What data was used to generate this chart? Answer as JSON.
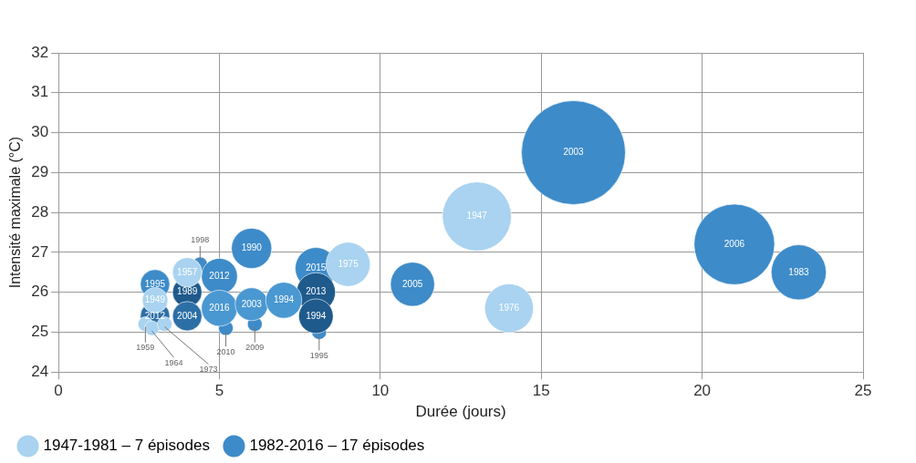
{
  "chart_data": {
    "type": "bubble",
    "xlabel": "Durée (jours)",
    "ylabel": "Intensité maximale (°C)",
    "xlim": [
      0,
      25
    ],
    "xticks": [
      0,
      5,
      10,
      15,
      20,
      25
    ],
    "ylim": [
      24,
      32
    ],
    "yticks": [
      24,
      25,
      26,
      27,
      28,
      29,
      30,
      31,
      32
    ],
    "grid": true,
    "legend": "bottom",
    "series": [
      {
        "name": "1947-1981 – 7 épisodes",
        "color": "#a9d3f0",
        "x": [
          2.7,
          2.9,
          3.3,
          13,
          14,
          9,
          4,
          3
        ],
        "values": [
          25.2,
          25.1,
          25.2,
          27.9,
          25.6,
          26.7,
          26.5,
          25.8
        ],
        "sizes": [
          0.02,
          0.02,
          0.02,
          0.44,
          0.22,
          0.18,
          0.08,
          0.06
        ]
      },
      {
        "name": "1982-2016 – 17 épisodes",
        "color": "#3d8bc9",
        "colors": [
          "#3d8bc9",
          "#3d8bc9",
          "#3d8bc9",
          "#3d8bc9",
          "#3d8bc9",
          "#3d8bc9",
          "#3d8bc9",
          "#3d8bc9",
          "#3d8bc9",
          "#1f5a8c",
          "#1f5a8c",
          "#3d8bc9",
          "#3d8bc9",
          "#4a98d2",
          "#4a98d2",
          "#4a98d2",
          "#3d8bc9",
          "#2c6fa6",
          "#1f5a8c",
          "#2c6fa6"
        ],
        "x": [
          4.4,
          5.2,
          6.1,
          8.1,
          16,
          21,
          23,
          11,
          8,
          8,
          8,
          6,
          5,
          5,
          6,
          7,
          3,
          3,
          4,
          4
        ],
        "values": [
          26.7,
          25.1,
          25.2,
          25.0,
          29.5,
          27.2,
          26.5,
          26.2,
          26.6,
          26.0,
          25.4,
          27.1,
          26.4,
          25.6,
          25.7,
          25.8,
          26.2,
          25.4,
          26.0,
          25.4
        ],
        "sizes": [
          0.02,
          0.02,
          0.02,
          0.02,
          1,
          0.6,
          0.28,
          0.18,
          0.16,
          0.14,
          0.11,
          0.15,
          0.12,
          0.12,
          0.1,
          0.12,
          0.08,
          0.08,
          0.08,
          0.08
        ]
      }
    ],
    "annotations": [
      {
        "text": "1947",
        "x": 13,
        "y": 27.9
      },
      {
        "text": "1976",
        "x": 14,
        "y": 25.6
      },
      {
        "text": "1975",
        "x": 9,
        "y": 26.7
      },
      {
        "text": "1957",
        "x": 4,
        "y": 26.5
      },
      {
        "text": "1949",
        "x": 3,
        "y": 25.8
      },
      {
        "text": "2003",
        "x": 16,
        "y": 29.5
      },
      {
        "text": "2006",
        "x": 21,
        "y": 27.2
      },
      {
        "text": "1983",
        "x": 23,
        "y": 26.5
      },
      {
        "text": "2005",
        "x": 11,
        "y": 26.2
      },
      {
        "text": "2015",
        "x": 8,
        "y": 26.6
      },
      {
        "text": "2013",
        "x": 8,
        "y": 26.0
      },
      {
        "text": "1994",
        "x": 8,
        "y": 25.4
      },
      {
        "text": "1990",
        "x": 6,
        "y": 27.1
      },
      {
        "text": "2012",
        "x": 5,
        "y": 26.4
      },
      {
        "text": "2016",
        "x": 5,
        "y": 25.6
      },
      {
        "text": "2003",
        "x": 6,
        "y": 25.7
      },
      {
        "text": "1994",
        "x": 7,
        "y": 25.8
      },
      {
        "text": "1995",
        "x": 3,
        "y": 26.2
      },
      {
        "text": "2012",
        "x": 3,
        "y": 25.4
      },
      {
        "text": "1989",
        "x": 4,
        "y": 26.0
      },
      {
        "text": "2004",
        "x": 4,
        "y": 25.4
      },
      {
        "text": "1998",
        "x": 4.4,
        "y": 26.7
      },
      {
        "text": "1959",
        "x": 2.7,
        "y": 25.2
      },
      {
        "text": "1964",
        "x": 2.9,
        "y": 25.1
      },
      {
        "text": "1973",
        "x": 3.3,
        "y": 25.2
      },
      {
        "text": "2010",
        "x": 5.2,
        "y": 25.1
      },
      {
        "text": "2009",
        "x": 6.1,
        "y": 25.2
      },
      {
        "text": "1995",
        "x": 8.1,
        "y": 25.0
      }
    ]
  }
}
